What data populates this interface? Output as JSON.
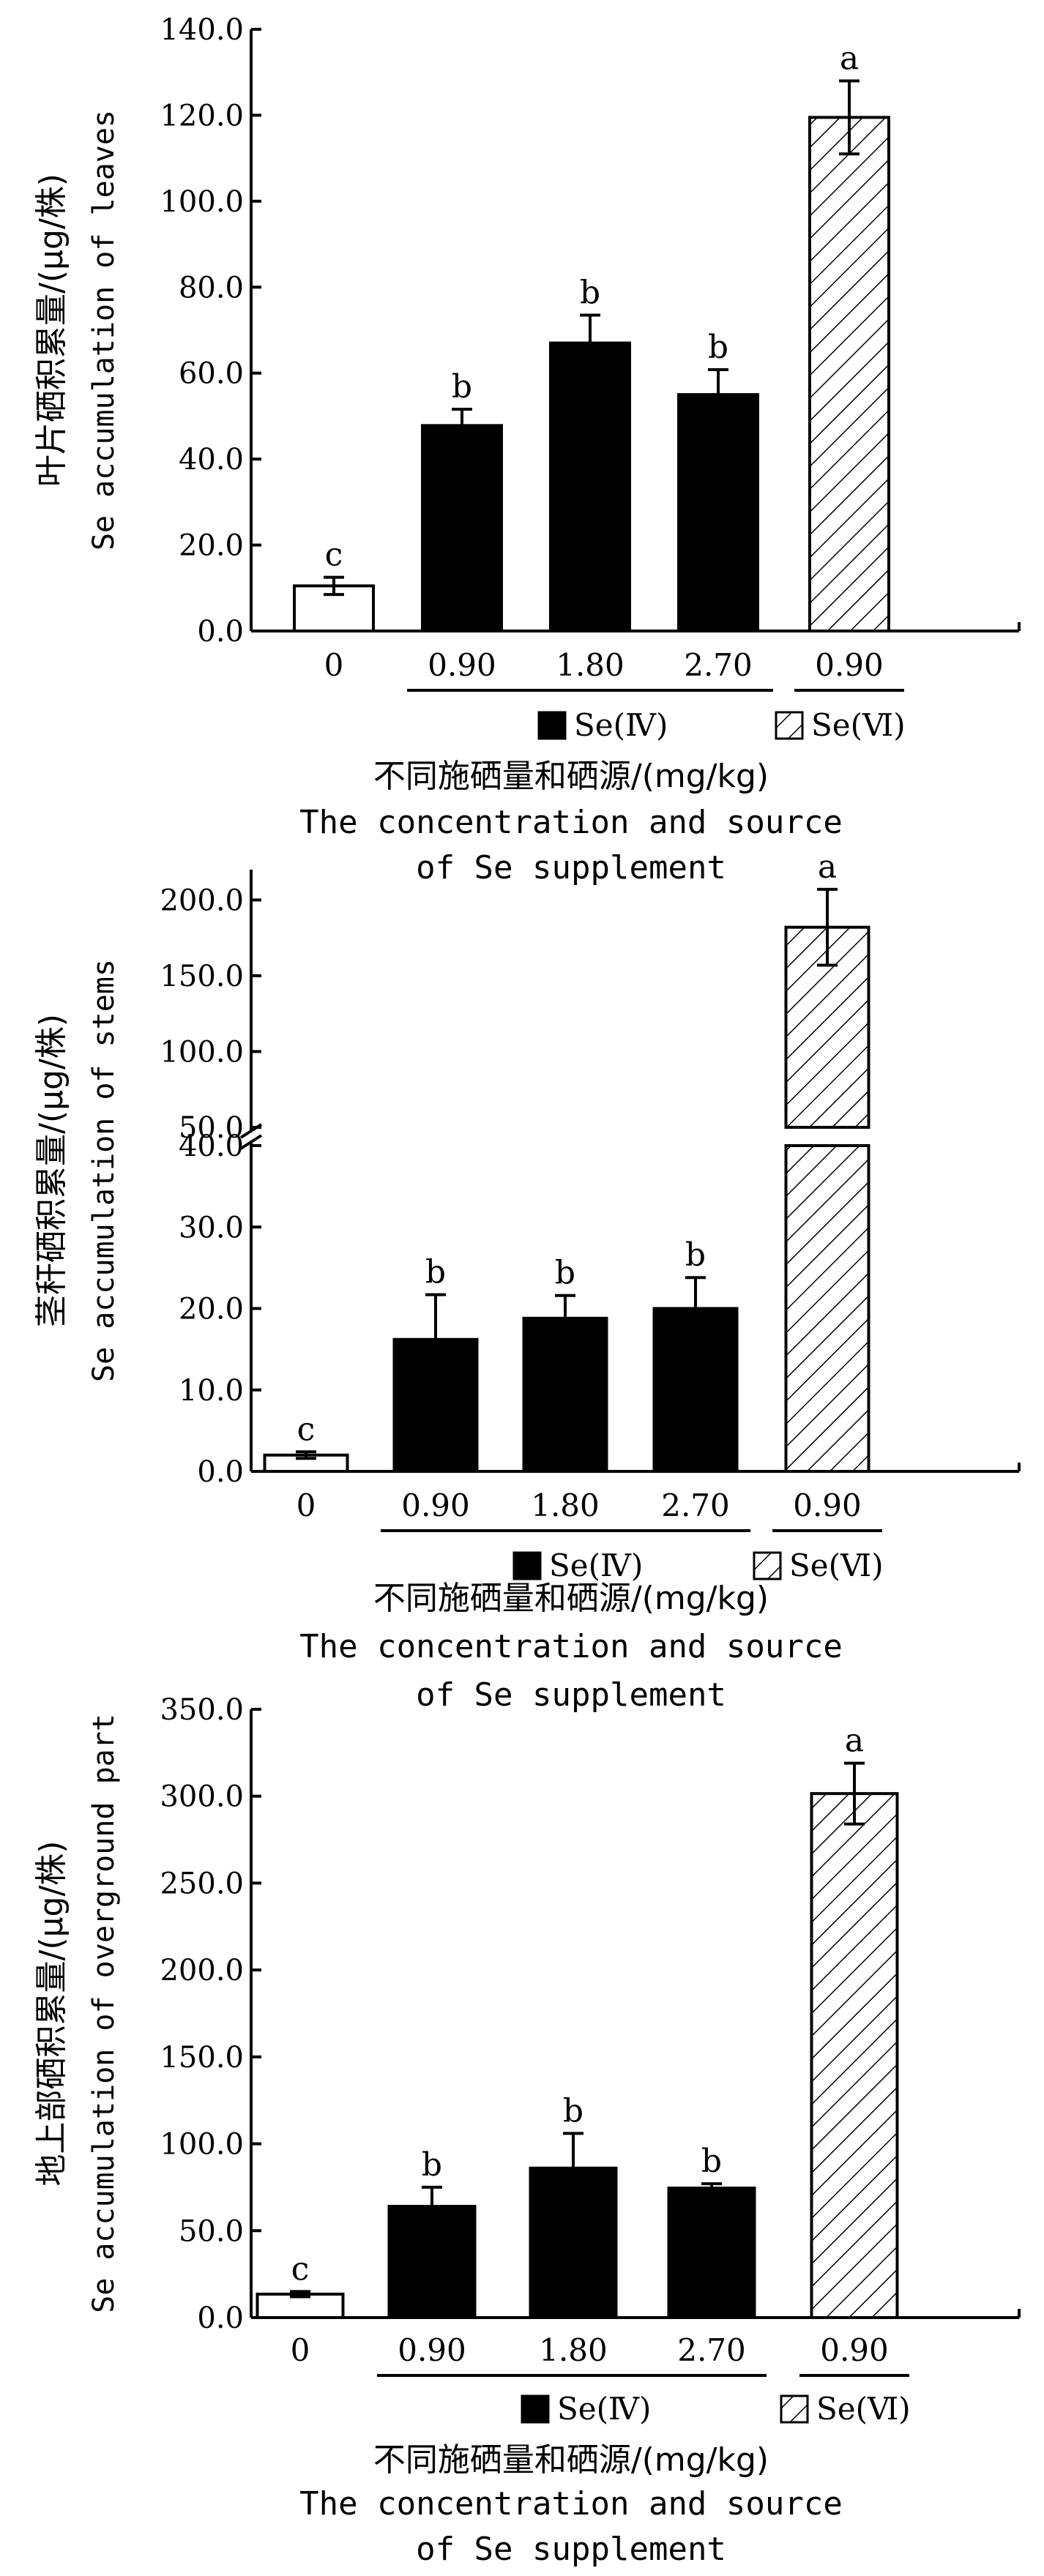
{
  "chart_data": [
    {
      "type": "bar",
      "panel": "leaves",
      "categories": [
        "0",
        "0.90",
        "1.80",
        "2.70",
        "0.90"
      ],
      "values": [
        10.5,
        47.8,
        67.0,
        55.0,
        119.5
      ],
      "errors": [
        2.0,
        3.8,
        6.5,
        5.8,
        8.5
      ],
      "sig_letters": [
        "c",
        "b",
        "b",
        "b",
        "a"
      ],
      "bar_styles": [
        "white",
        "black",
        "black",
        "black",
        "hatch"
      ],
      "ylim": [
        0,
        140
      ],
      "ytick_labels": [
        "0.0",
        "20.0",
        "40.0",
        "60.0",
        "80.0",
        "100.0",
        "120.0",
        "140.0"
      ],
      "ylabel_zh": "叶片硒积累量/(μg/株)",
      "ylabel_en": "Se accumulation of leaves",
      "xlabel_zh": "不同施硒量和硒源/(mg/kg)",
      "xlabel_en_line1": "The concentration and source",
      "xlabel_en_line2": "of Se supplement",
      "legend": [
        "Se(Ⅳ)",
        "Se(Ⅵ)"
      ]
    },
    {
      "type": "bar",
      "panel": "stems",
      "axis_break": true,
      "categories": [
        "0",
        "0.90",
        "1.80",
        "2.70",
        "0.90"
      ],
      "values": [
        2.0,
        16.2,
        18.8,
        20.0,
        182.0
      ],
      "errors": [
        0.4,
        5.5,
        2.8,
        3.8,
        25.0
      ],
      "sig_letters": [
        "c",
        "b",
        "b",
        "b",
        "a"
      ],
      "bar_styles": [
        "white",
        "black",
        "black",
        "black",
        "hatch"
      ],
      "ylim_lower": [
        0,
        40
      ],
      "ylim_upper": [
        50,
        220
      ],
      "ytick_labels_lower": [
        "0.0",
        "10.0",
        "20.0",
        "30.0",
        "40.0"
      ],
      "ytick_labels_upper": [
        "50.0",
        "100.0",
        "150.0",
        "200.0"
      ],
      "ylabel_zh": "茎秆硒积累量/(μg/株)",
      "ylabel_en": "Se accumulation of stems",
      "xlabel_zh": "不同施硒量和硒源/(mg/kg)",
      "xlabel_en_line1": "The concentration and source",
      "xlabel_en_line2": "of Se supplement",
      "legend": [
        "Se(Ⅳ)",
        "Se(Ⅵ)"
      ]
    },
    {
      "type": "bar",
      "panel": "overground",
      "categories": [
        "0",
        "0.90",
        "1.80",
        "2.70",
        "0.90"
      ],
      "values": [
        13.5,
        64.0,
        86.0,
        74.5,
        301.5
      ],
      "errors": [
        1.5,
        11.0,
        20.0,
        2.5,
        17.5
      ],
      "sig_letters": [
        "c",
        "b",
        "b",
        "b",
        "a"
      ],
      "bar_styles": [
        "white",
        "black",
        "black",
        "black",
        "hatch"
      ],
      "ylim": [
        0,
        350
      ],
      "ytick_labels": [
        "0.0",
        "50.0",
        "100.0",
        "150.0",
        "200.0",
        "250.0",
        "300.0",
        "350.0"
      ],
      "ylabel_zh": "地上部硒积累量/(μg/株)",
      "ylabel_en": "Se accumulation of overground part",
      "xlabel_zh": "不同施硒量和硒源/(mg/kg)",
      "xlabel_en_line1": "The concentration and source",
      "xlabel_en_line2": "of Se supplement",
      "legend": [
        "Se(Ⅳ)",
        "Se(Ⅵ)"
      ]
    }
  ]
}
